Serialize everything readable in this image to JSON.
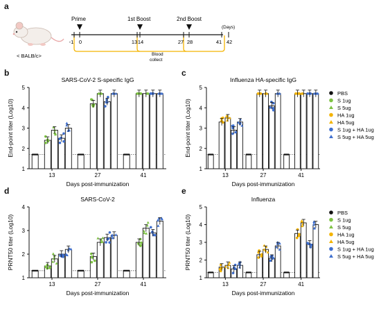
{
  "panels": [
    {
      "letter": "a"
    },
    {
      "letter": "b"
    },
    {
      "letter": "c"
    },
    {
      "letter": "d"
    },
    {
      "letter": "e"
    }
  ],
  "timeline": {
    "mouse_label": "< BALB/c>",
    "ticks": [
      "-1",
      "0",
      "13",
      "14",
      "27",
      "28",
      "41",
      "42"
    ],
    "days_label": "(Days)",
    "prime": "Prime",
    "boost1": "1st Boost",
    "boost2": "2nd Boost",
    "blood": "Blood",
    "collect": "collect"
  },
  "legend": {
    "items": [
      {
        "label": "PBS",
        "marker": "circle",
        "color": "#111111"
      },
      {
        "label": "S 1ug",
        "marker": "circle",
        "color": "#7dc242"
      },
      {
        "label": "S 5ug",
        "marker": "triangle",
        "color": "#7dc242"
      },
      {
        "label": "HA 1ug",
        "marker": "circle",
        "color": "#f4b400"
      },
      {
        "label": "HA 5ug",
        "marker": "triangle",
        "color": "#f4b400"
      },
      {
        "label": "S 1ug + HA 1ug",
        "marker": "circle",
        "color": "#3f6fce"
      },
      {
        "label": "S 5ug + HA 5ug",
        "marker": "triangle",
        "color": "#3f6fce"
      }
    ]
  },
  "chart_data": [
    {
      "type": "bar",
      "panel": "b",
      "title": "SARS-CoV-2 S-specific IgG",
      "xlabel": "Days post-immunization",
      "ylabel": "End-point titer (Log10)",
      "ylim": [
        1,
        5
      ],
      "yticks": [
        1,
        2,
        3,
        4,
        5
      ],
      "categories": [
        "13",
        "27",
        "41"
      ],
      "dotted_line": 1.7,
      "series": [
        {
          "name": "PBS",
          "values": [
            1.7,
            1.7,
            1.7
          ]
        },
        {
          "name": "S 1ug",
          "values": [
            2.4,
            4.2,
            4.7
          ]
        },
        {
          "name": "S 5ug",
          "values": [
            2.9,
            4.7,
            4.7
          ]
        },
        {
          "name": "S 1ug + HA 1ug",
          "values": [
            2.5,
            4.3,
            4.7
          ]
        },
        {
          "name": "S 5ug + HA 5ug",
          "values": [
            3.0,
            4.7,
            4.7
          ]
        }
      ]
    },
    {
      "type": "bar",
      "panel": "c",
      "title": "Influenza HA-specific IgG",
      "xlabel": "Days post-immunization",
      "ylabel": "End-point titer (Log10)",
      "ylim": [
        1,
        5
      ],
      "yticks": [
        1,
        2,
        3,
        4,
        5
      ],
      "categories": [
        "13",
        "27",
        "41"
      ],
      "dotted_line": 1.7,
      "series": [
        {
          "name": "PBS",
          "values": [
            1.7,
            1.7,
            1.7
          ]
        },
        {
          "name": "HA 1ug",
          "values": [
            3.3,
            4.7,
            4.7
          ]
        },
        {
          "name": "HA 5ug",
          "values": [
            3.5,
            4.7,
            4.7
          ]
        },
        {
          "name": "S 1ug + HA 1ug",
          "values": [
            2.9,
            4.1,
            4.7
          ]
        },
        {
          "name": "S 5ug + HA 5ug",
          "values": [
            3.3,
            4.7,
            4.7
          ]
        }
      ]
    },
    {
      "type": "bar",
      "panel": "d",
      "title": "SARS-CoV-2",
      "xlabel": "Days post-immunization",
      "ylabel": "PRNT50 titer (Log10)",
      "ylim": [
        1,
        4
      ],
      "yticks": [
        1,
        2,
        3,
        4
      ],
      "categories": [
        "13",
        "27",
        "41"
      ],
      "dotted_line": 1.3,
      "series": [
        {
          "name": "PBS",
          "values": [
            1.3,
            1.3,
            1.3
          ]
        },
        {
          "name": "S 1ug",
          "values": [
            1.5,
            1.9,
            2.5
          ]
        },
        {
          "name": "S 5ug",
          "values": [
            1.8,
            2.5,
            3.1
          ]
        },
        {
          "name": "S 1ug + HA 1ug",
          "values": [
            2.0,
            2.7,
            2.9
          ]
        },
        {
          "name": "S 5ug + HA 5ug",
          "values": [
            2.2,
            2.8,
            3.4
          ]
        }
      ]
    },
    {
      "type": "bar",
      "panel": "e",
      "title": "Influenza",
      "xlabel": "Days post-immunization",
      "ylabel": "PRNT50 titer (Log10)",
      "ylim": [
        1,
        5
      ],
      "yticks": [
        1,
        2,
        3,
        4,
        5
      ],
      "categories": [
        "13",
        "27",
        "41"
      ],
      "dotted_line": 1.3,
      "series": [
        {
          "name": "PBS",
          "values": [
            1.3,
            1.3,
            1.3
          ]
        },
        {
          "name": "HA 1ug",
          "values": [
            1.6,
            2.3,
            3.5
          ]
        },
        {
          "name": "HA 5ug",
          "values": [
            1.7,
            2.6,
            4.1
          ]
        },
        {
          "name": "S 1ug + HA 1ug",
          "values": [
            1.5,
            2.1,
            2.9
          ]
        },
        {
          "name": "S 5ug + HA 5ug",
          "values": [
            1.7,
            2.8,
            4.0
          ]
        }
      ]
    }
  ]
}
